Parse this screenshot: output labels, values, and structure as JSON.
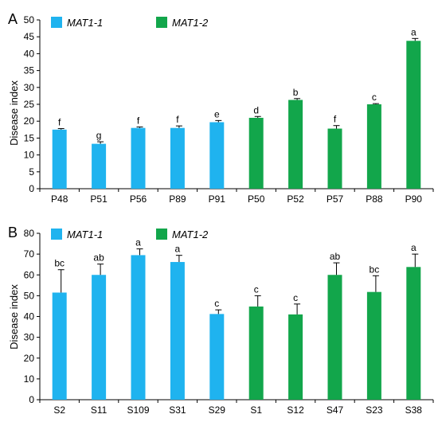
{
  "colors": {
    "mat1_1": "#1fb3ef",
    "mat1_2": "#12a64b",
    "axis": "#000000"
  },
  "legend": {
    "mat1_1": "MAT1-1",
    "mat1_2": "MAT1-2"
  },
  "chart_data": [
    {
      "type": "bar",
      "panel_label": "A",
      "ylabel": "Disease index",
      "ylim": [
        0,
        50
      ],
      "yticks": [
        0,
        5,
        10,
        15,
        20,
        25,
        30,
        35,
        40,
        45,
        50
      ],
      "categories": [
        "P48",
        "P51",
        "P56",
        "P89",
        "P91",
        "P50",
        "P52",
        "P57",
        "P88",
        "P90"
      ],
      "values": [
        17.5,
        13.3,
        18.0,
        18.0,
        19.7,
        21.0,
        26.3,
        17.8,
        25.0,
        43.8
      ],
      "errors": [
        0.3,
        0.6,
        0.3,
        0.6,
        0.5,
        0.4,
        0.4,
        0.9,
        0.2,
        0.7
      ],
      "groups": [
        "MAT1-1",
        "MAT1-1",
        "MAT1-1",
        "MAT1-1",
        "MAT1-1",
        "MAT1-2",
        "MAT1-2",
        "MAT1-2",
        "MAT1-2",
        "MAT1-2"
      ],
      "significance": [
        "f",
        "g",
        "f",
        "f",
        "e",
        "d",
        "b",
        "f",
        "c",
        "a"
      ]
    },
    {
      "type": "bar",
      "panel_label": "B",
      "ylabel": "Disease index",
      "ylim": [
        0,
        80
      ],
      "yticks": [
        0,
        10,
        20,
        30,
        40,
        50,
        60,
        70,
        80
      ],
      "categories": [
        "S2",
        "S11",
        "S109",
        "S31",
        "S29",
        "S1",
        "S12",
        "S47",
        "S23",
        "S38"
      ],
      "values": [
        51.5,
        60.0,
        69.5,
        66.2,
        41.2,
        44.8,
        41.0,
        60.0,
        51.8,
        63.8
      ],
      "errors": [
        11.0,
        5.2,
        3.0,
        3.2,
        2.0,
        5.2,
        5.0,
        5.8,
        7.8,
        6.2
      ],
      "groups": [
        "MAT1-1",
        "MAT1-1",
        "MAT1-1",
        "MAT1-1",
        "MAT1-1",
        "MAT1-2",
        "MAT1-2",
        "MAT1-2",
        "MAT1-2",
        "MAT1-2"
      ],
      "significance": [
        "bc",
        "ab",
        "a",
        "a",
        "c",
        "c",
        "c",
        "ab",
        "bc",
        "a"
      ]
    }
  ]
}
